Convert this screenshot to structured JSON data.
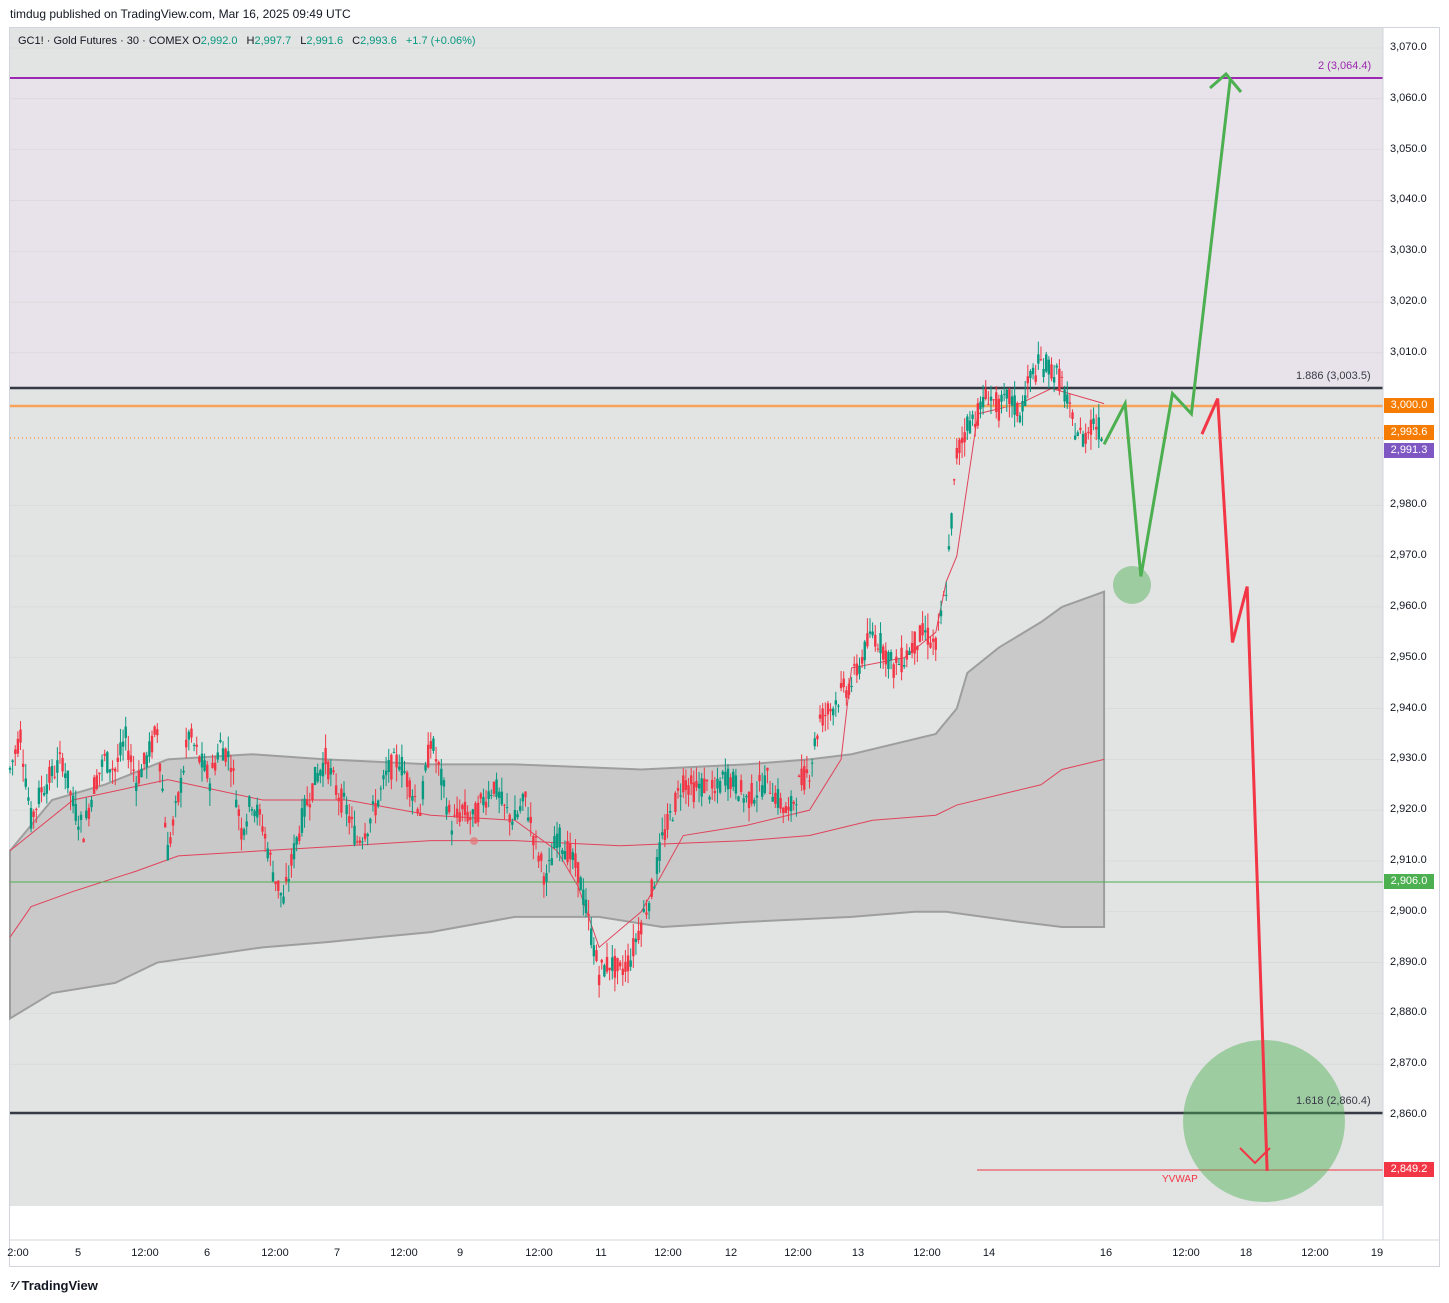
{
  "header": {
    "published": "timdug published on TradingView.com, Mar 16, 2025 09:49 UTC"
  },
  "legend": {
    "symbol": "GC1! · Gold Futures · 30 · COMEX",
    "o_key": "O",
    "o": "2,992.0",
    "h_key": "H",
    "h": "2,997.7",
    "l_key": "L",
    "l": "2,991.6",
    "c_key": "C",
    "c": "2,993.6",
    "change": "+1.7 (+0.06%)"
  },
  "fib": {
    "top": "2 (3,064.4)",
    "mid": "1.886 (3,003.5)",
    "low": "1.618 (2,860.4)",
    "yvwap": "YVWAP"
  },
  "price_tags": {
    "p3000": "3,000.0",
    "p2993": "2,993.6",
    "p2991": "2,991.3",
    "p2906": "2,906.0",
    "p2849": "2,849.2"
  },
  "colors": {
    "fib_top": "#9c27b0",
    "level_3000": "#f7a35c",
    "price_tag_orange": "#f57c00",
    "price_tag_purple": "#7e57c2",
    "level_2906": "#4caf50",
    "bull_candle": "#089981",
    "bear_candle": "#f23645",
    "scenario_up": "#4caf50",
    "scenario_down": "#f23645",
    "vwap": "#e0435a",
    "band_fill": "#c4c4c4"
  },
  "chart_data": {
    "type": "line",
    "ylim": [
      2840,
      3072
    ],
    "yticks": [
      "3,070.0",
      "3,060.0",
      "3,050.0",
      "3,040.0",
      "3,030.0",
      "3,020.0",
      "3,010.0",
      "2,980.0",
      "2,970.0",
      "2,960.0",
      "2,950.0",
      "2,940.0",
      "2,930.0",
      "2,920.0",
      "2,910.0",
      "2,900.0",
      "2,890.0",
      "2,880.0",
      "2,870.0",
      "2,860.0"
    ],
    "xticks": [
      "2:00",
      "5",
      "12:00",
      "6",
      "12:00",
      "7",
      "12:00",
      "9",
      "12:00",
      "11",
      "12:00",
      "12",
      "12:00",
      "13",
      "12:00",
      "14",
      "16",
      "12:00",
      "18",
      "12:00",
      "19"
    ],
    "levels": [
      {
        "name": "fib 2",
        "y": 3064.4
      },
      {
        "name": "fib 1.886",
        "y": 3003.5
      },
      {
        "name": "round 3000",
        "y": 3000.0
      },
      {
        "name": "last close",
        "y": 2993.6
      },
      {
        "name": "support",
        "y": 2906.0
      },
      {
        "name": "fib 1.618",
        "y": 2860.4
      },
      {
        "name": "YVWAP",
        "y": 2849.2
      }
    ],
    "price_path": [
      [
        0,
        2928
      ],
      [
        10,
        2935
      ],
      [
        20,
        2918
      ],
      [
        30,
        2924
      ],
      [
        40,
        2927
      ],
      [
        50,
        2930
      ],
      [
        60,
        2921
      ],
      [
        70,
        2916
      ],
      [
        80,
        2925
      ],
      [
        90,
        2930
      ],
      [
        100,
        2928
      ],
      [
        110,
        2934
      ],
      [
        120,
        2926
      ],
      [
        130,
        2930
      ],
      [
        140,
        2936
      ],
      [
        150,
        2912
      ],
      [
        160,
        2922
      ],
      [
        170,
        2935
      ],
      [
        180,
        2930
      ],
      [
        190,
        2926
      ],
      [
        200,
        2933
      ],
      [
        210,
        2930
      ],
      [
        220,
        2916
      ],
      [
        230,
        2922
      ],
      [
        240,
        2917
      ],
      [
        250,
        2908
      ],
      [
        260,
        2902
      ],
      [
        270,
        2912
      ],
      [
        280,
        2920
      ],
      [
        290,
        2926
      ],
      [
        300,
        2930
      ],
      [
        310,
        2924
      ],
      [
        320,
        2920
      ],
      [
        330,
        2914
      ],
      [
        340,
        2917
      ],
      [
        350,
        2922
      ],
      [
        360,
        2928
      ],
      [
        370,
        2930
      ],
      [
        380,
        2925
      ],
      [
        390,
        2920
      ],
      [
        400,
        2934
      ],
      [
        410,
        2926
      ],
      [
        420,
        2917
      ],
      [
        430,
        2920
      ],
      [
        440,
        2918
      ],
      [
        450,
        2922
      ],
      [
        460,
        2925
      ],
      [
        470,
        2920
      ],
      [
        480,
        2918
      ],
      [
        490,
        2922
      ],
      [
        500,
        2913
      ],
      [
        510,
        2906
      ],
      [
        520,
        2915
      ],
      [
        530,
        2912
      ],
      [
        540,
        2908
      ],
      [
        550,
        2898
      ],
      [
        560,
        2888
      ],
      [
        570,
        2890
      ],
      [
        580,
        2888
      ],
      [
        590,
        2891
      ],
      [
        600,
        2898
      ],
      [
        610,
        2904
      ],
      [
        620,
        2914
      ],
      [
        630,
        2920
      ],
      [
        640,
        2926
      ],
      [
        650,
        2924
      ],
      [
        660,
        2925
      ],
      [
        670,
        2923
      ],
      [
        680,
        2927
      ],
      [
        690,
        2925
      ],
      [
        700,
        2922
      ],
      [
        710,
        2924
      ],
      [
        720,
        2926
      ],
      [
        730,
        2922
      ],
      [
        740,
        2919
      ],
      [
        750,
        2925
      ],
      [
        760,
        2928
      ],
      [
        770,
        2938
      ],
      [
        780,
        2940
      ],
      [
        790,
        2943
      ],
      [
        800,
        2945
      ],
      [
        810,
        2950
      ],
      [
        820,
        2955
      ],
      [
        830,
        2952
      ],
      [
        840,
        2948
      ],
      [
        850,
        2950
      ],
      [
        860,
        2953
      ],
      [
        870,
        2955
      ],
      [
        880,
        2952
      ],
      [
        890,
        2964
      ],
      [
        900,
        2990
      ],
      [
        910,
        2996
      ],
      [
        920,
        2998
      ],
      [
        930,
        3002
      ],
      [
        940,
        2999
      ],
      [
        950,
        3001
      ],
      [
        960,
        2998
      ],
      [
        970,
        3005
      ],
      [
        980,
        3008
      ],
      [
        990,
        3007
      ],
      [
        1000,
        3004
      ],
      [
        1010,
        2996
      ],
      [
        1020,
        2993
      ],
      [
        1030,
        2997
      ],
      [
        1040,
        2993
      ]
    ],
    "scenario_up": [
      [
        1040,
        2992
      ],
      [
        1060,
        3000
      ],
      [
        1075,
        2966
      ],
      [
        1105,
        3002
      ],
      [
        1123,
        2998
      ],
      [
        1160,
        3064
      ]
    ],
    "scenario_down": [
      [
        1133,
        2994
      ],
      [
        1148,
        3001
      ],
      [
        1162,
        2953
      ],
      [
        1176,
        2964
      ],
      [
        1195,
        2849
      ]
    ]
  }
}
